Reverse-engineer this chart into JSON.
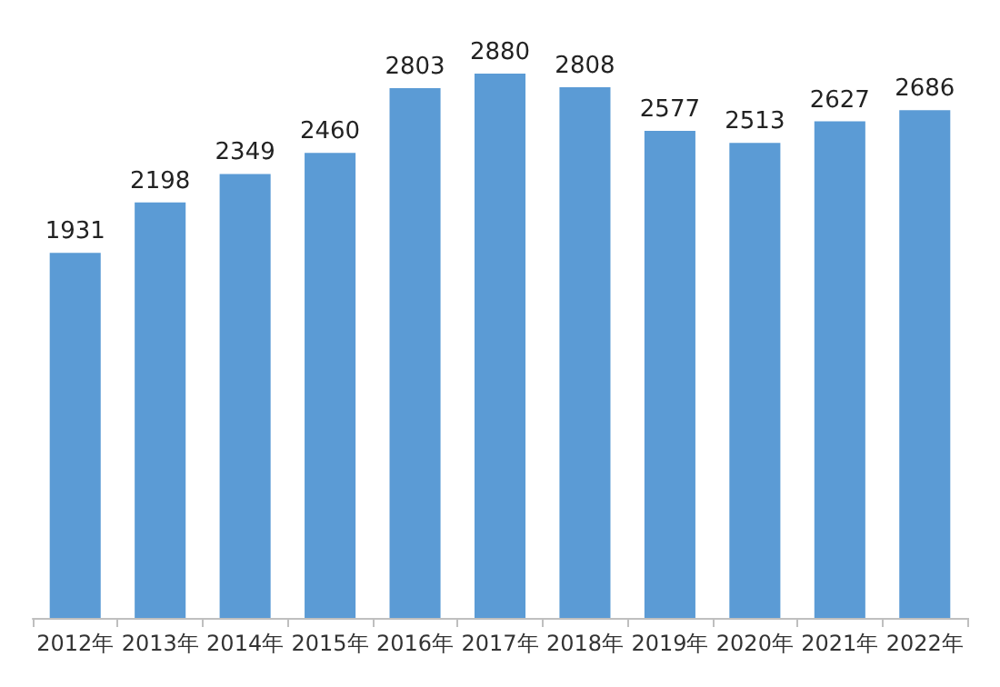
{
  "chart_data": {
    "type": "bar",
    "categories": [
      "2012年",
      "2013年",
      "2014年",
      "2015年",
      "2016年",
      "2017年",
      "2018年",
      "2019年",
      "2020年",
      "2021年",
      "2022年"
    ],
    "values": [
      1931,
      2198,
      2349,
      2460,
      2803,
      2880,
      2808,
      2577,
      2513,
      2627,
      2686
    ],
    "color": "#5b9bd5",
    "data_labels": true
  }
}
